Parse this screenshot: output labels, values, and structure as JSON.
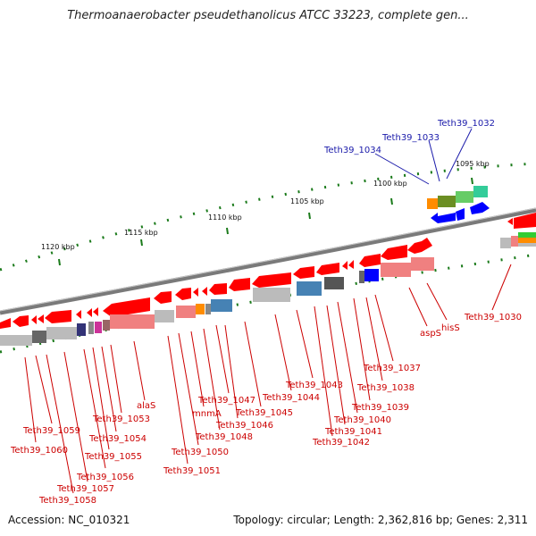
{
  "title": "Thermoanaerobacter pseudethanolicus ATCC 33223, complete gen...",
  "footer": {
    "accession": "Accession: NC_010321",
    "summary": "Topology: circular; Length: 2,362,816 bp; Genes: 2,311"
  },
  "scale_labels": [
    "1120 kbp",
    "1115 kbp",
    "1110 kbp",
    "1105 kbp",
    "1100 kbp",
    "1095 kbp"
  ],
  "gene_labels_blue": [
    "Teth39_1032",
    "Teth39_1033",
    "Teth39_1034"
  ],
  "gene_labels_red": [
    "Teth39_1030",
    "hisS",
    "aspS",
    "Teth39_1037",
    "Teth39_1038",
    "Teth39_1039",
    "Teth39_1040",
    "Teth39_1041",
    "Teth39_1042",
    "Teth39_1043",
    "Teth39_1044",
    "Teth39_1045",
    "Teth39_1046",
    "Teth39_1047",
    "Teth39_1048",
    "mnmA",
    "Teth39_1050",
    "Teth39_1051",
    "alaS",
    "Teth39_1053",
    "Teth39_1054",
    "Teth39_1055",
    "Teth39_1056",
    "Teth39_1057",
    "Teth39_1058",
    "Teth39_1059",
    "Teth39_1060"
  ],
  "colors": {
    "forward_strand_gene": "#ff0000",
    "reverse_strand_gene": "#0000ff",
    "backbone": "#888888",
    "tick": "#1a7a1a",
    "label_red": "#cc0000",
    "label_blue": "#1a1aaa"
  }
}
